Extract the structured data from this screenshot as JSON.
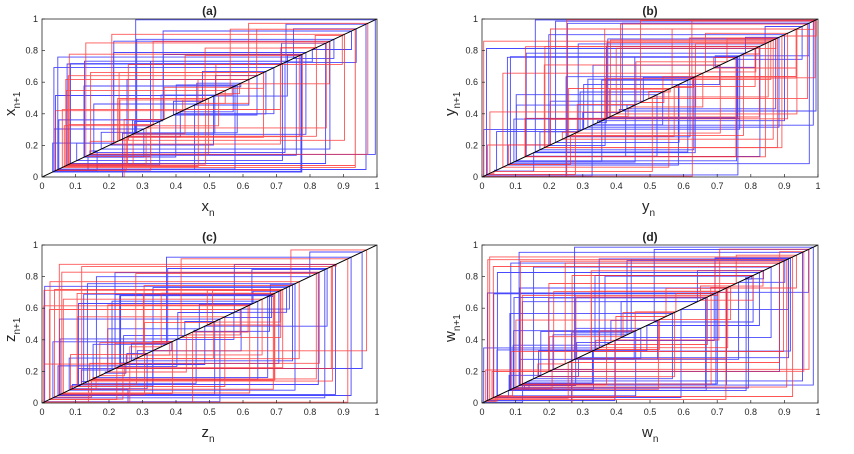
{
  "chart_data": [
    {
      "type": "line",
      "title": "(a)",
      "xlabel": "x",
      "xlabel_sub": "n",
      "ylabel": "x",
      "ylabel_sub": "n+1",
      "xlim": [
        0,
        1
      ],
      "ylim": [
        0,
        1
      ],
      "xticks": [
        "0",
        "0.1",
        "0.2",
        "0.3",
        "0.4",
        "0.5",
        "0.6",
        "0.7",
        "0.8",
        "0.9",
        "1"
      ],
      "yticks": [
        "0",
        "0.2",
        "0.4",
        "0.6",
        "0.8",
        "1"
      ],
      "series": [
        {
          "name": "diagonal",
          "values": [
            [
              0,
              0
            ],
            [
              1,
              1
            ]
          ]
        },
        {
          "name": "cobweb-blue",
          "seed": 11,
          "steps": 70
        },
        {
          "name": "cobweb-red",
          "seed": 23,
          "steps": 60
        }
      ]
    },
    {
      "type": "line",
      "title": "(b)",
      "xlabel": "y",
      "xlabel_sub": "n",
      "ylabel": "y",
      "ylabel_sub": "n+1",
      "xlim": [
        0,
        1
      ],
      "ylim": [
        0,
        1
      ],
      "xticks": [
        "0",
        "0.1",
        "0.2",
        "0.3",
        "0.4",
        "0.5",
        "0.6",
        "0.7",
        "0.8",
        "0.9",
        "1"
      ],
      "yticks": [
        "0",
        "0.2",
        "0.4",
        "0.6",
        "0.8",
        "1"
      ],
      "series": [
        {
          "name": "diagonal",
          "values": [
            [
              0,
              0
            ],
            [
              1,
              1
            ]
          ]
        },
        {
          "name": "cobweb-blue",
          "seed": 37,
          "steps": 70
        },
        {
          "name": "cobweb-red",
          "seed": 41,
          "steps": 70
        }
      ]
    },
    {
      "type": "line",
      "title": "(c)",
      "xlabel": "z",
      "xlabel_sub": "n",
      "ylabel": "z",
      "ylabel_sub": "n+1",
      "xlim": [
        0,
        1
      ],
      "ylim": [
        0,
        1
      ],
      "xticks": [
        "0",
        "0.1",
        "0.2",
        "0.3",
        "0.4",
        "0.5",
        "0.6",
        "0.7",
        "0.8",
        "0.9",
        "1"
      ],
      "yticks": [
        "0",
        "0.2",
        "0.4",
        "0.6",
        "0.8",
        "1"
      ],
      "series": [
        {
          "name": "diagonal",
          "values": [
            [
              0,
              0
            ],
            [
              1,
              1
            ]
          ]
        },
        {
          "name": "cobweb-blue",
          "seed": 53,
          "steps": 70
        },
        {
          "name": "cobweb-red",
          "seed": 67,
          "steps": 65
        }
      ]
    },
    {
      "type": "line",
      "title": "(d)",
      "xlabel": "w",
      "xlabel_sub": "n",
      "ylabel": "w",
      "ylabel_sub": "n+1",
      "xlim": [
        0,
        1
      ],
      "ylim": [
        0,
        1
      ],
      "xticks": [
        "0",
        "0.1",
        "0.2",
        "0.3",
        "0.4",
        "0.5",
        "0.6",
        "0.7",
        "0.8",
        "0.9",
        "1"
      ],
      "yticks": [
        "0",
        "0.2",
        "0.4",
        "0.6",
        "0.8",
        "1"
      ],
      "series": [
        {
          "name": "diagonal",
          "values": [
            [
              0,
              0
            ],
            [
              1,
              1
            ]
          ]
        },
        {
          "name": "cobweb-blue",
          "seed": 79,
          "steps": 75
        },
        {
          "name": "cobweb-red",
          "seed": 83,
          "steps": 60
        }
      ]
    }
  ],
  "colors": {
    "blue": "#1a1aff",
    "red": "#ff2a2a",
    "diagonal": "#000000",
    "axis": "#262626"
  }
}
